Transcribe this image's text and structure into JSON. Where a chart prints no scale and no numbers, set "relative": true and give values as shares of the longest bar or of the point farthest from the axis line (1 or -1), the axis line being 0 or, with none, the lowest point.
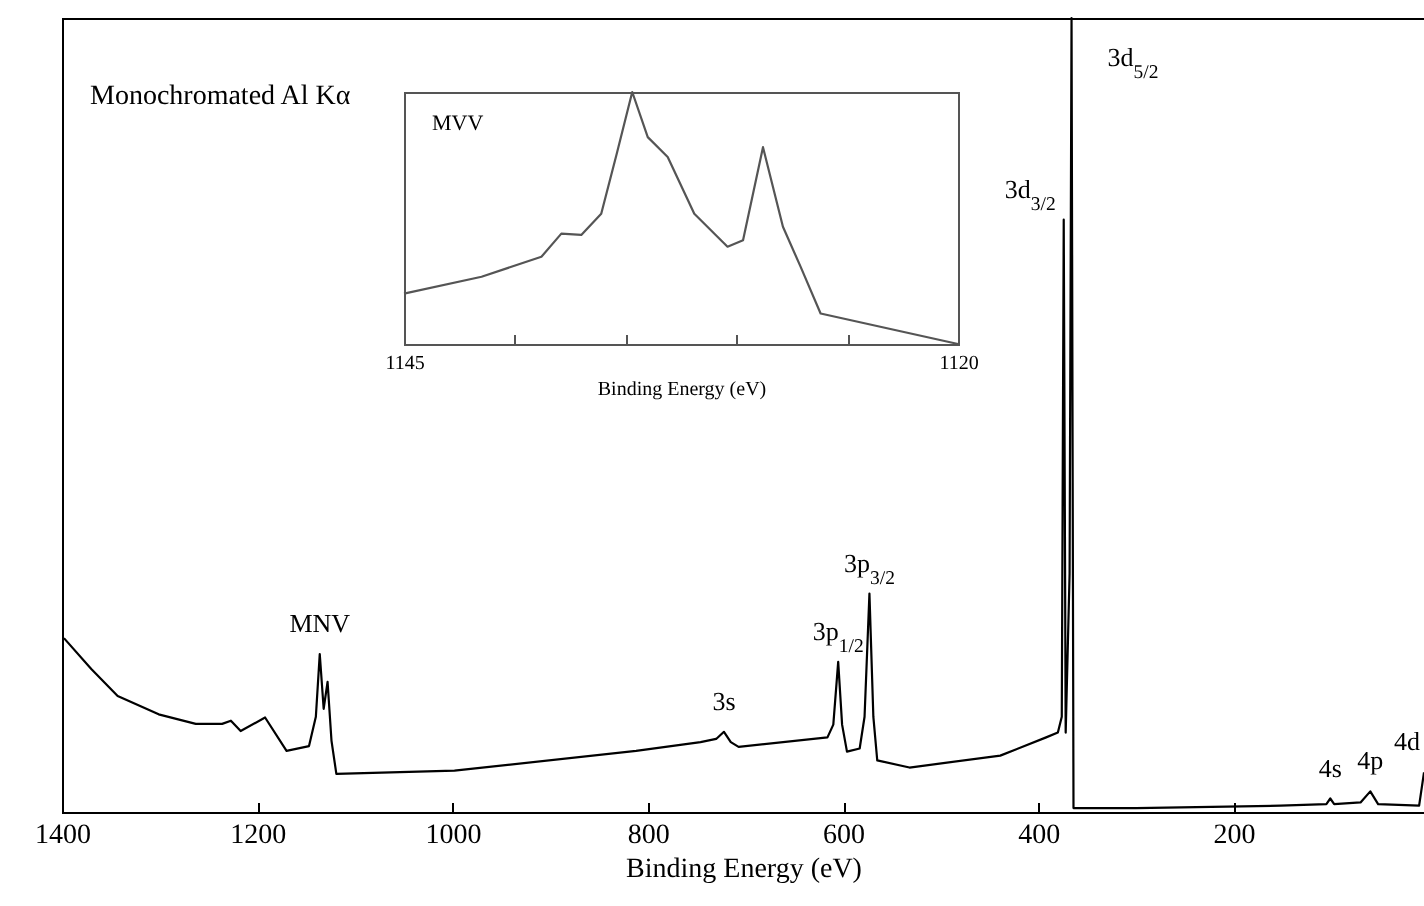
{
  "chart_data": [
    {
      "type": "line",
      "xlabel": "Binding Energy (eV)",
      "xlim": [
        1400,
        5
      ],
      "xticks": [
        1400,
        1200,
        1000,
        800,
        600,
        400,
        200
      ],
      "relative": true,
      "annotations": [
        "Monochromated Al Kα",
        {
          "text": "MNV",
          "x": 1136,
          "y": 0.199
        },
        {
          "text": "3s",
          "x": 722,
          "y": 0.101
        },
        {
          "text": "3p$_{1/2}$",
          "x": 605,
          "y": 0.189
        },
        {
          "text": "3p$_{3/2}$",
          "x": 573,
          "y": 0.275
        },
        {
          "text": "3d$_{3/2}$",
          "x": 374,
          "y": 0.746
        },
        {
          "text": "3d$_{5/2}$",
          "x": 366,
          "y": 1
        },
        {
          "text": "4s",
          "x": 101,
          "y": 0.017
        },
        {
          "text": "4p",
          "x": 60,
          "y": 0.026
        },
        {
          "text": "4d",
          "x": 5,
          "y": 0.05
        }
      ],
      "series": [
        {
          "color": "#000000",
          "x": [
            1398,
            1370,
            1343,
            1301,
            1263,
            1236,
            1227,
            1217,
            1192,
            1170,
            1147,
            1140,
            1136,
            1132,
            1128,
            1124,
            1119,
            998,
            812,
            746,
            730,
            722,
            715,
            707,
            616,
            610,
            605,
            601,
            596,
            583,
            578,
            573,
            569,
            565,
            532,
            439,
            392,
            380,
            376,
            374,
            372,
            368,
            366,
            364,
            300,
            152,
            105,
            101,
            97,
            70,
            60,
            52,
            10,
            5
          ],
          "values": [
            0.219,
            0.18,
            0.146,
            0.123,
            0.111,
            0.111,
            0.115,
            0.102,
            0.119,
            0.077,
            0.083,
            0.12,
            0.199,
            0.13,
            0.164,
            0.09,
            0.048,
            0.052,
            0.077,
            0.088,
            0.092,
            0.101,
            0.088,
            0.082,
            0.094,
            0.11,
            0.189,
            0.11,
            0.076,
            0.08,
            0.12,
            0.275,
            0.12,
            0.065,
            0.056,
            0.071,
            0.094,
            0.1,
            0.12,
            0.746,
            0.1,
            0.3,
            1,
            0.005,
            0.005,
            0.008,
            0.01,
            0.017,
            0.01,
            0.012,
            0.026,
            0.01,
            0.008,
            0.05
          ]
        }
      ]
    },
    {
      "type": "line",
      "xlabel": "Binding Energy (eV)",
      "xlim": [
        1145,
        1120
      ],
      "xticks": [
        1145,
        {
          "value": 1140,
          "label": null
        },
        {
          "value": 1135,
          "label": null
        },
        {
          "value": 1130,
          "label": null
        },
        {
          "value": 1125,
          "label": null
        },
        1120
      ],
      "relative": true,
      "annotations": [
        "MVV"
      ],
      "series": [
        {
          "color": "#555555",
          "x": [
            1145,
            1141.5,
            1138.8,
            1137.9,
            1137,
            1136.1,
            1135.4,
            1134.7,
            1134,
            1133.1,
            1131.9,
            1130.4,
            1129.7,
            1128.8,
            1127.9,
            1127.1,
            1126.2,
            1120
          ],
          "values": [
            0.2,
            0.267,
            0.346,
            0.438,
            0.433,
            0.517,
            0.755,
            1,
            0.821,
            0.742,
            0.517,
            0.386,
            0.412,
            0.781,
            0.465,
            0.306,
            0.121,
            0
          ]
        }
      ]
    }
  ]
}
